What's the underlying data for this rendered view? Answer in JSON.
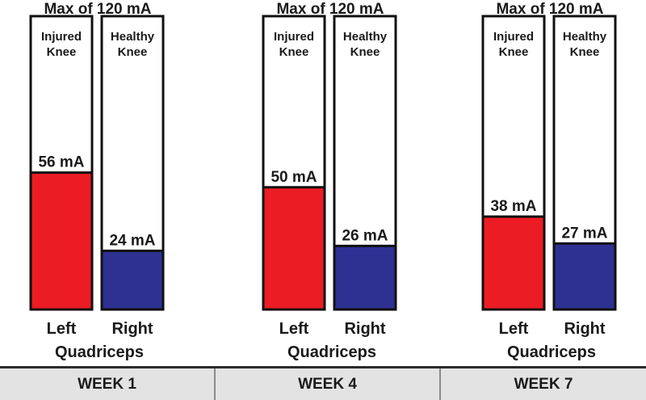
{
  "chart_data": {
    "type": "bar",
    "unit": "mA",
    "max_label": "Max of 120 mA",
    "ylim": [
      0,
      120
    ],
    "series": [
      {
        "name": "Injured Knee",
        "bottom_label": "Left",
        "color": "#ec1c24",
        "values": [
          56,
          50,
          38
        ],
        "value_labels": [
          "56 mA",
          "50 mA",
          "38 mA"
        ]
      },
      {
        "name": "Healthy Knee",
        "bottom_label": "Right",
        "color": "#2e3192",
        "values": [
          24,
          26,
          27
        ],
        "value_labels": [
          "24 mA",
          "26 mA",
          "27 mA"
        ]
      }
    ],
    "group_label": "Quadriceps",
    "categories": [
      "WEEK 1",
      "WEEK 4",
      "WEEK 7"
    ]
  }
}
